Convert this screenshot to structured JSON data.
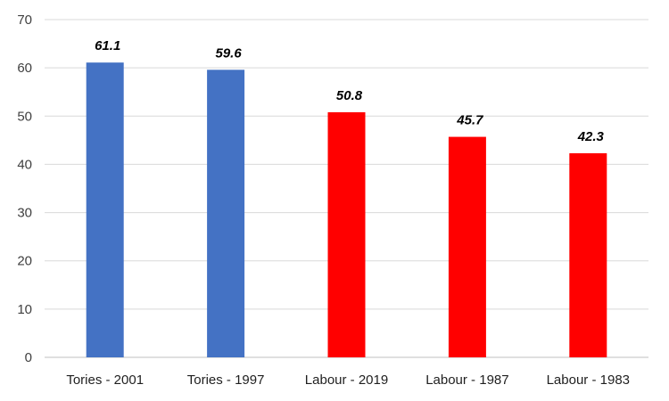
{
  "chart_data": {
    "type": "bar",
    "title": "",
    "xlabel": "",
    "ylabel": "",
    "categories": [
      "Tories - 2001",
      "Tories - 1997",
      "Labour - 2019",
      "Labour - 1987",
      "Labour - 1983"
    ],
    "values": [
      61.1,
      59.6,
      50.8,
      45.7,
      42.3
    ],
    "data_labels": [
      "61.1",
      "59.6",
      "50.8",
      "45.7",
      "42.3"
    ],
    "bar_colors": [
      "#4472C4",
      "#4472C4",
      "#FF0000",
      "#FF0000",
      "#FF0000"
    ],
    "ylim": [
      0,
      70
    ],
    "yticks": [
      0,
      10,
      20,
      30,
      40,
      50,
      60,
      70
    ],
    "grid": true,
    "legend": "none"
  }
}
